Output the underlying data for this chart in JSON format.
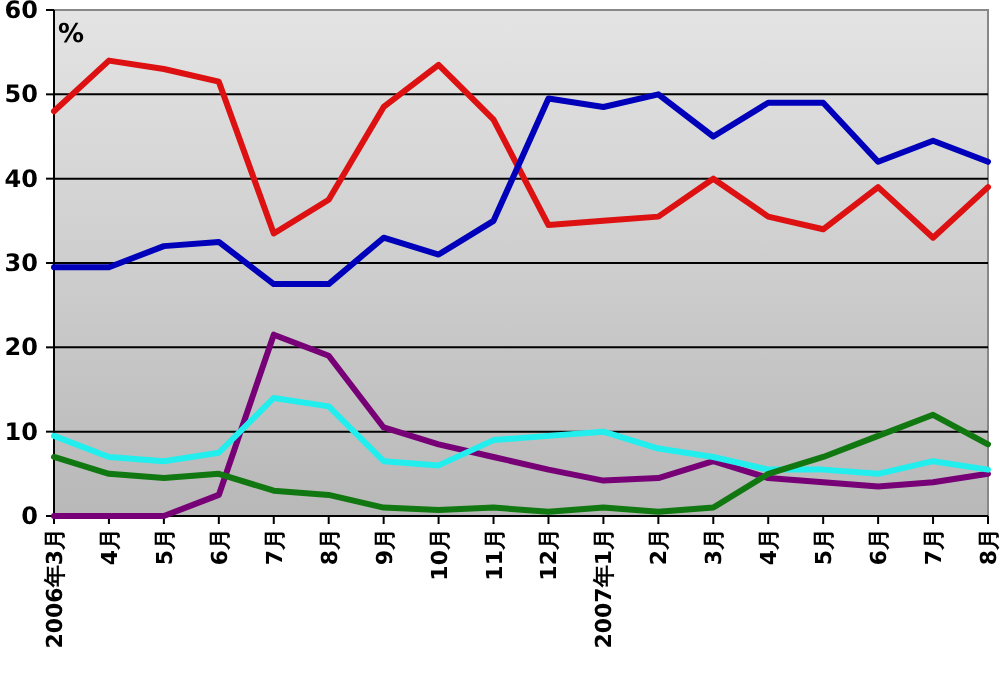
{
  "chart_data": {
    "type": "line",
    "ylabel": "%",
    "categories": [
      "2006年3月",
      "4月",
      "5月",
      "6月",
      "7月",
      "8月",
      "9月",
      "10月",
      "11月",
      "12月",
      "2007年1月",
      "2月",
      "3月",
      "4月",
      "5月",
      "6月",
      "7月",
      "8月"
    ],
    "series": [
      {
        "color": "#dd1111",
        "values": [
          48,
          54,
          53,
          51.5,
          33.5,
          37.5,
          48.5,
          53.5,
          47,
          34.5,
          35,
          35.5,
          40,
          35.5,
          34,
          39,
          33,
          39
        ]
      },
      {
        "color": "#0000bb",
        "values": [
          29.5,
          29.5,
          32,
          32.5,
          27.5,
          27.5,
          33,
          31,
          35,
          49.5,
          48.5,
          50,
          45,
          49,
          49,
          42,
          44.5,
          42
        ]
      },
      {
        "color": "#770077",
        "values": [
          0,
          0,
          0,
          2.5,
          21.5,
          19,
          10.5,
          8.5,
          7,
          5.5,
          4.2,
          4.5,
          6.5,
          4.5,
          4,
          3.5,
          4,
          5
        ]
      },
      {
        "color": "#22eeee",
        "values": [
          9.5,
          7,
          6.5,
          7.5,
          14,
          13,
          6.5,
          6,
          9,
          9.5,
          10,
          8,
          7,
          5.5,
          5.5,
          5,
          6.5,
          5.5
        ]
      },
      {
        "color": "#117711",
        "values": [
          7,
          5,
          4.5,
          5,
          3,
          2.5,
          1,
          0.7,
          1,
          0.5,
          1,
          0.5,
          1,
          5,
          7,
          9.5,
          12,
          8.5
        ]
      }
    ],
    "ylim": [
      0,
      60
    ],
    "yticks": [
      0,
      10,
      20,
      30,
      40,
      50,
      60
    ],
    "grid": "y",
    "marker": "none",
    "line_style": "solid"
  }
}
